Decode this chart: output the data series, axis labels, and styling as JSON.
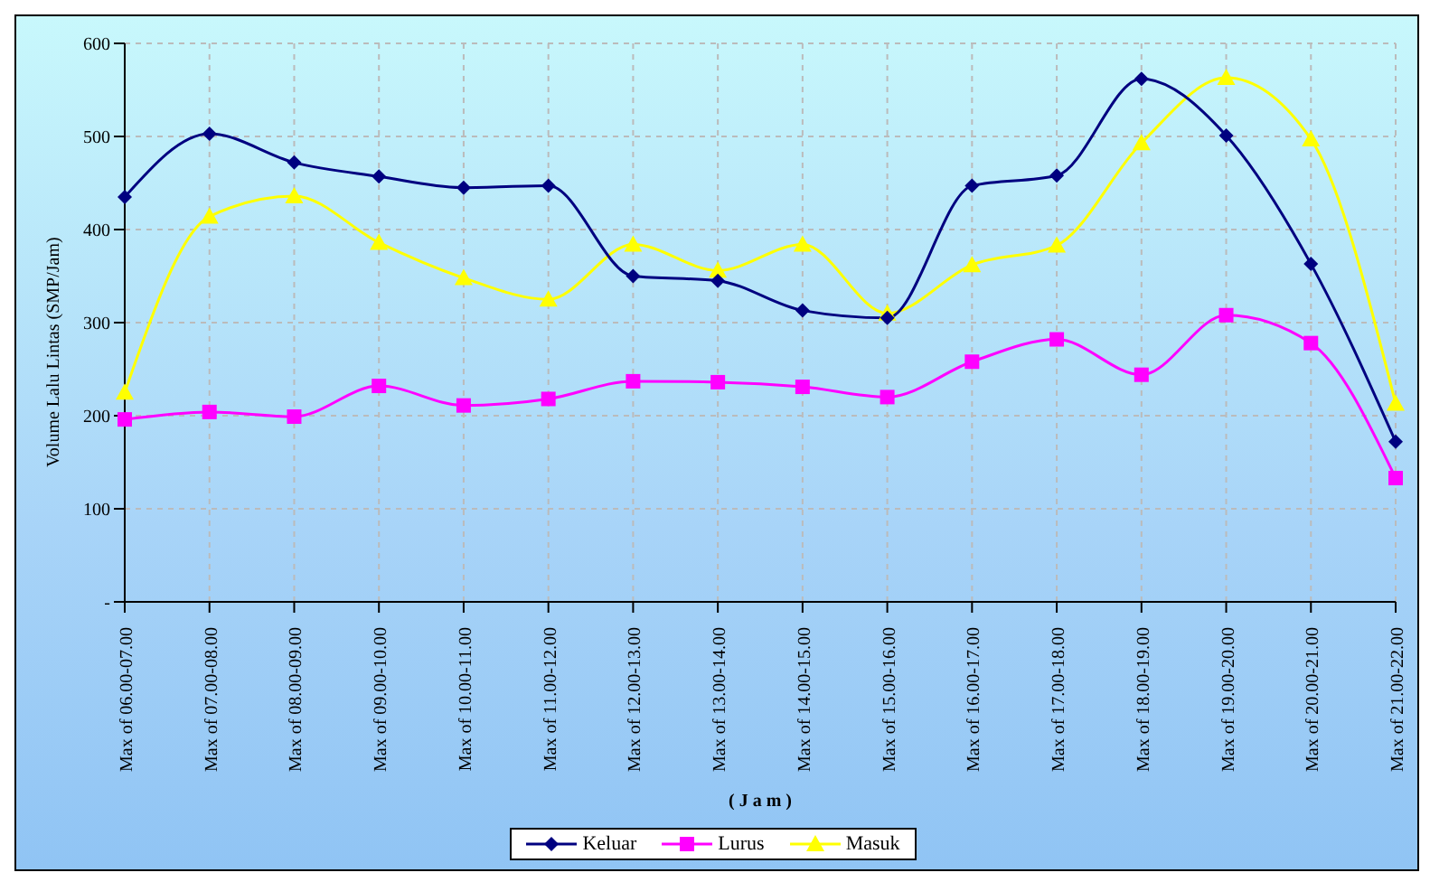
{
  "chart_data": {
    "type": "line",
    "xlabel": "( J a m )",
    "ylabel": "Volume Lalu Lintas (SMP/Jam)",
    "categories": [
      "Max of 06.00-07.00",
      "Max of 07.00-08.00",
      "Max of 08.00-09.00",
      "Max of 09.00-10.00",
      "Max of 10.00-11.00",
      "Max of 11.00-12.00",
      "Max of 12.00-13.00",
      "Max of 13.00-14.00",
      "Max of 14.00-15.00",
      "Max of 15.00-16.00",
      "Max of 16.00-17.00",
      "Max of 17.00-18.00",
      "Max of 18.00-19.00",
      "Max of 19.00-20.00",
      "Max of 20.00-21.00",
      "Max of 21.00-22.00"
    ],
    "series": [
      {
        "name": "Keluar",
        "color": "#000080",
        "marker": "diamond",
        "values": [
          435,
          503,
          472,
          457,
          445,
          447,
          350,
          345,
          313,
          305,
          447,
          458,
          562,
          501,
          363,
          172
        ]
      },
      {
        "name": "Lurus",
        "color": "#ff00ff",
        "marker": "square",
        "values": [
          196,
          204,
          199,
          232,
          211,
          218,
          237,
          236,
          231,
          220,
          258,
          282,
          244,
          308,
          278,
          133
        ]
      },
      {
        "name": "Masuk",
        "color": "#ffff00",
        "marker": "triangle",
        "values": [
          225,
          414,
          436,
          386,
          348,
          325,
          384,
          356,
          384,
          310,
          362,
          383,
          493,
          563,
          497,
          213
        ]
      }
    ],
    "ylim": [
      0,
      600
    ],
    "yticks": [
      {
        "value": 0,
        "label": "-"
      },
      100,
      200,
      300,
      400,
      500,
      600
    ],
    "grid": true,
    "legend": "bottom",
    "line_style": "solid"
  }
}
